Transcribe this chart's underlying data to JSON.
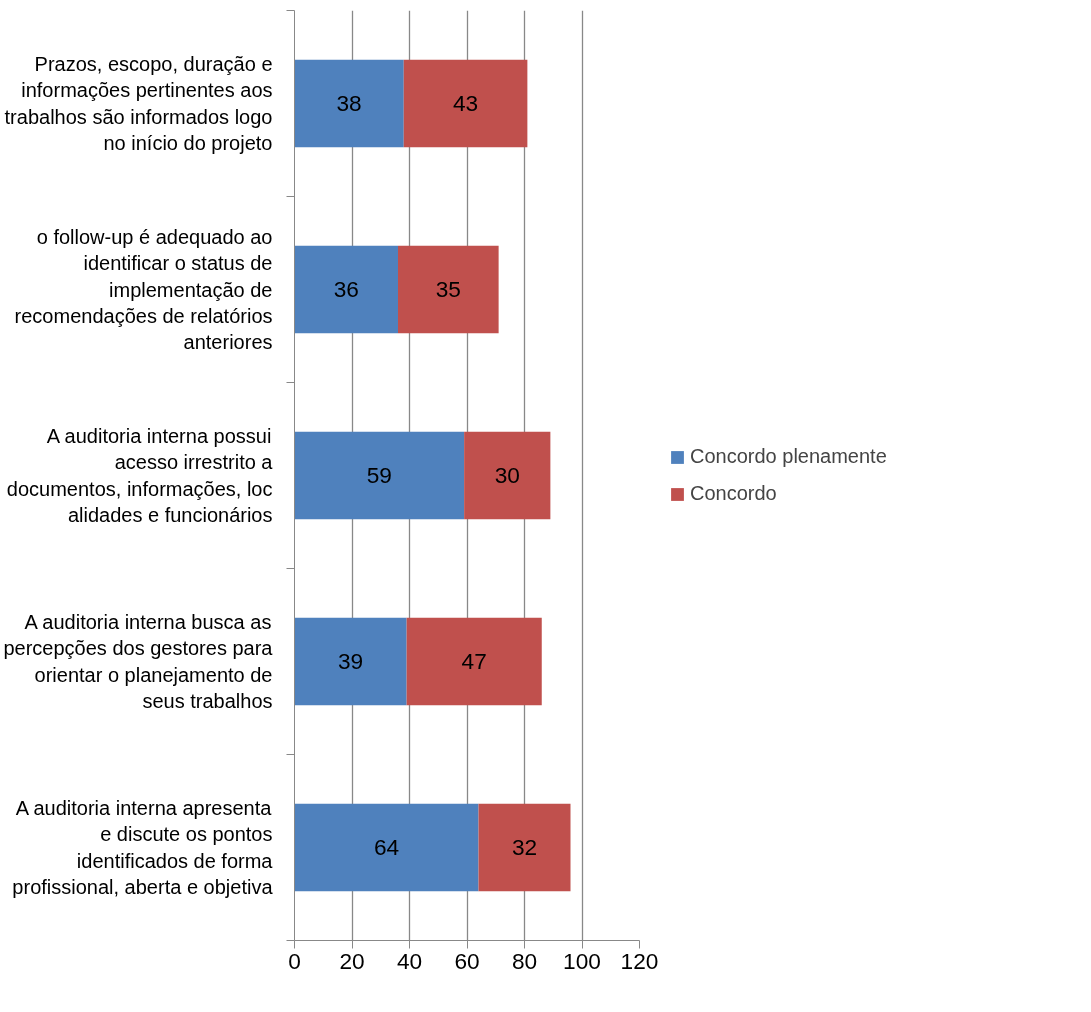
{
  "chart_data": {
    "type": "bar",
    "orientation": "horizontal",
    "stacked": true,
    "categories": [
      "Prazos, escopo, duração e\ninformações pertinentes aos\ntrabalhos são informados logo\nno início do projeto",
      "o follow-up é adequado ao\nidentificar o status de\nimplementação de\nrecomendações de relatórios\nanteriores",
      "A auditoria interna possui\nacesso irrestrito a\ndocumentos, informações, loc\nalidades e funcionários",
      "A auditoria interna busca as\npercepções dos gestores para\norientar o planejamento de\nseus trabalhos",
      "A auditoria interna apresenta\ne discute os pontos\nidentificados de forma\nprofissional, aberta e objetiva"
    ],
    "series": [
      {
        "name": "Concordo plenamente",
        "color": "#4f81bd",
        "values": [
          38,
          36,
          59,
          39,
          64
        ]
      },
      {
        "name": "Concordo",
        "color": "#c0504d",
        "values": [
          43,
          35,
          30,
          47,
          32
        ]
      }
    ],
    "xlim": [
      0,
      120
    ],
    "xticks": [
      0,
      20,
      40,
      60,
      80,
      100,
      120
    ],
    "grid": "x",
    "legend": "right",
    "data_labels": true
  }
}
